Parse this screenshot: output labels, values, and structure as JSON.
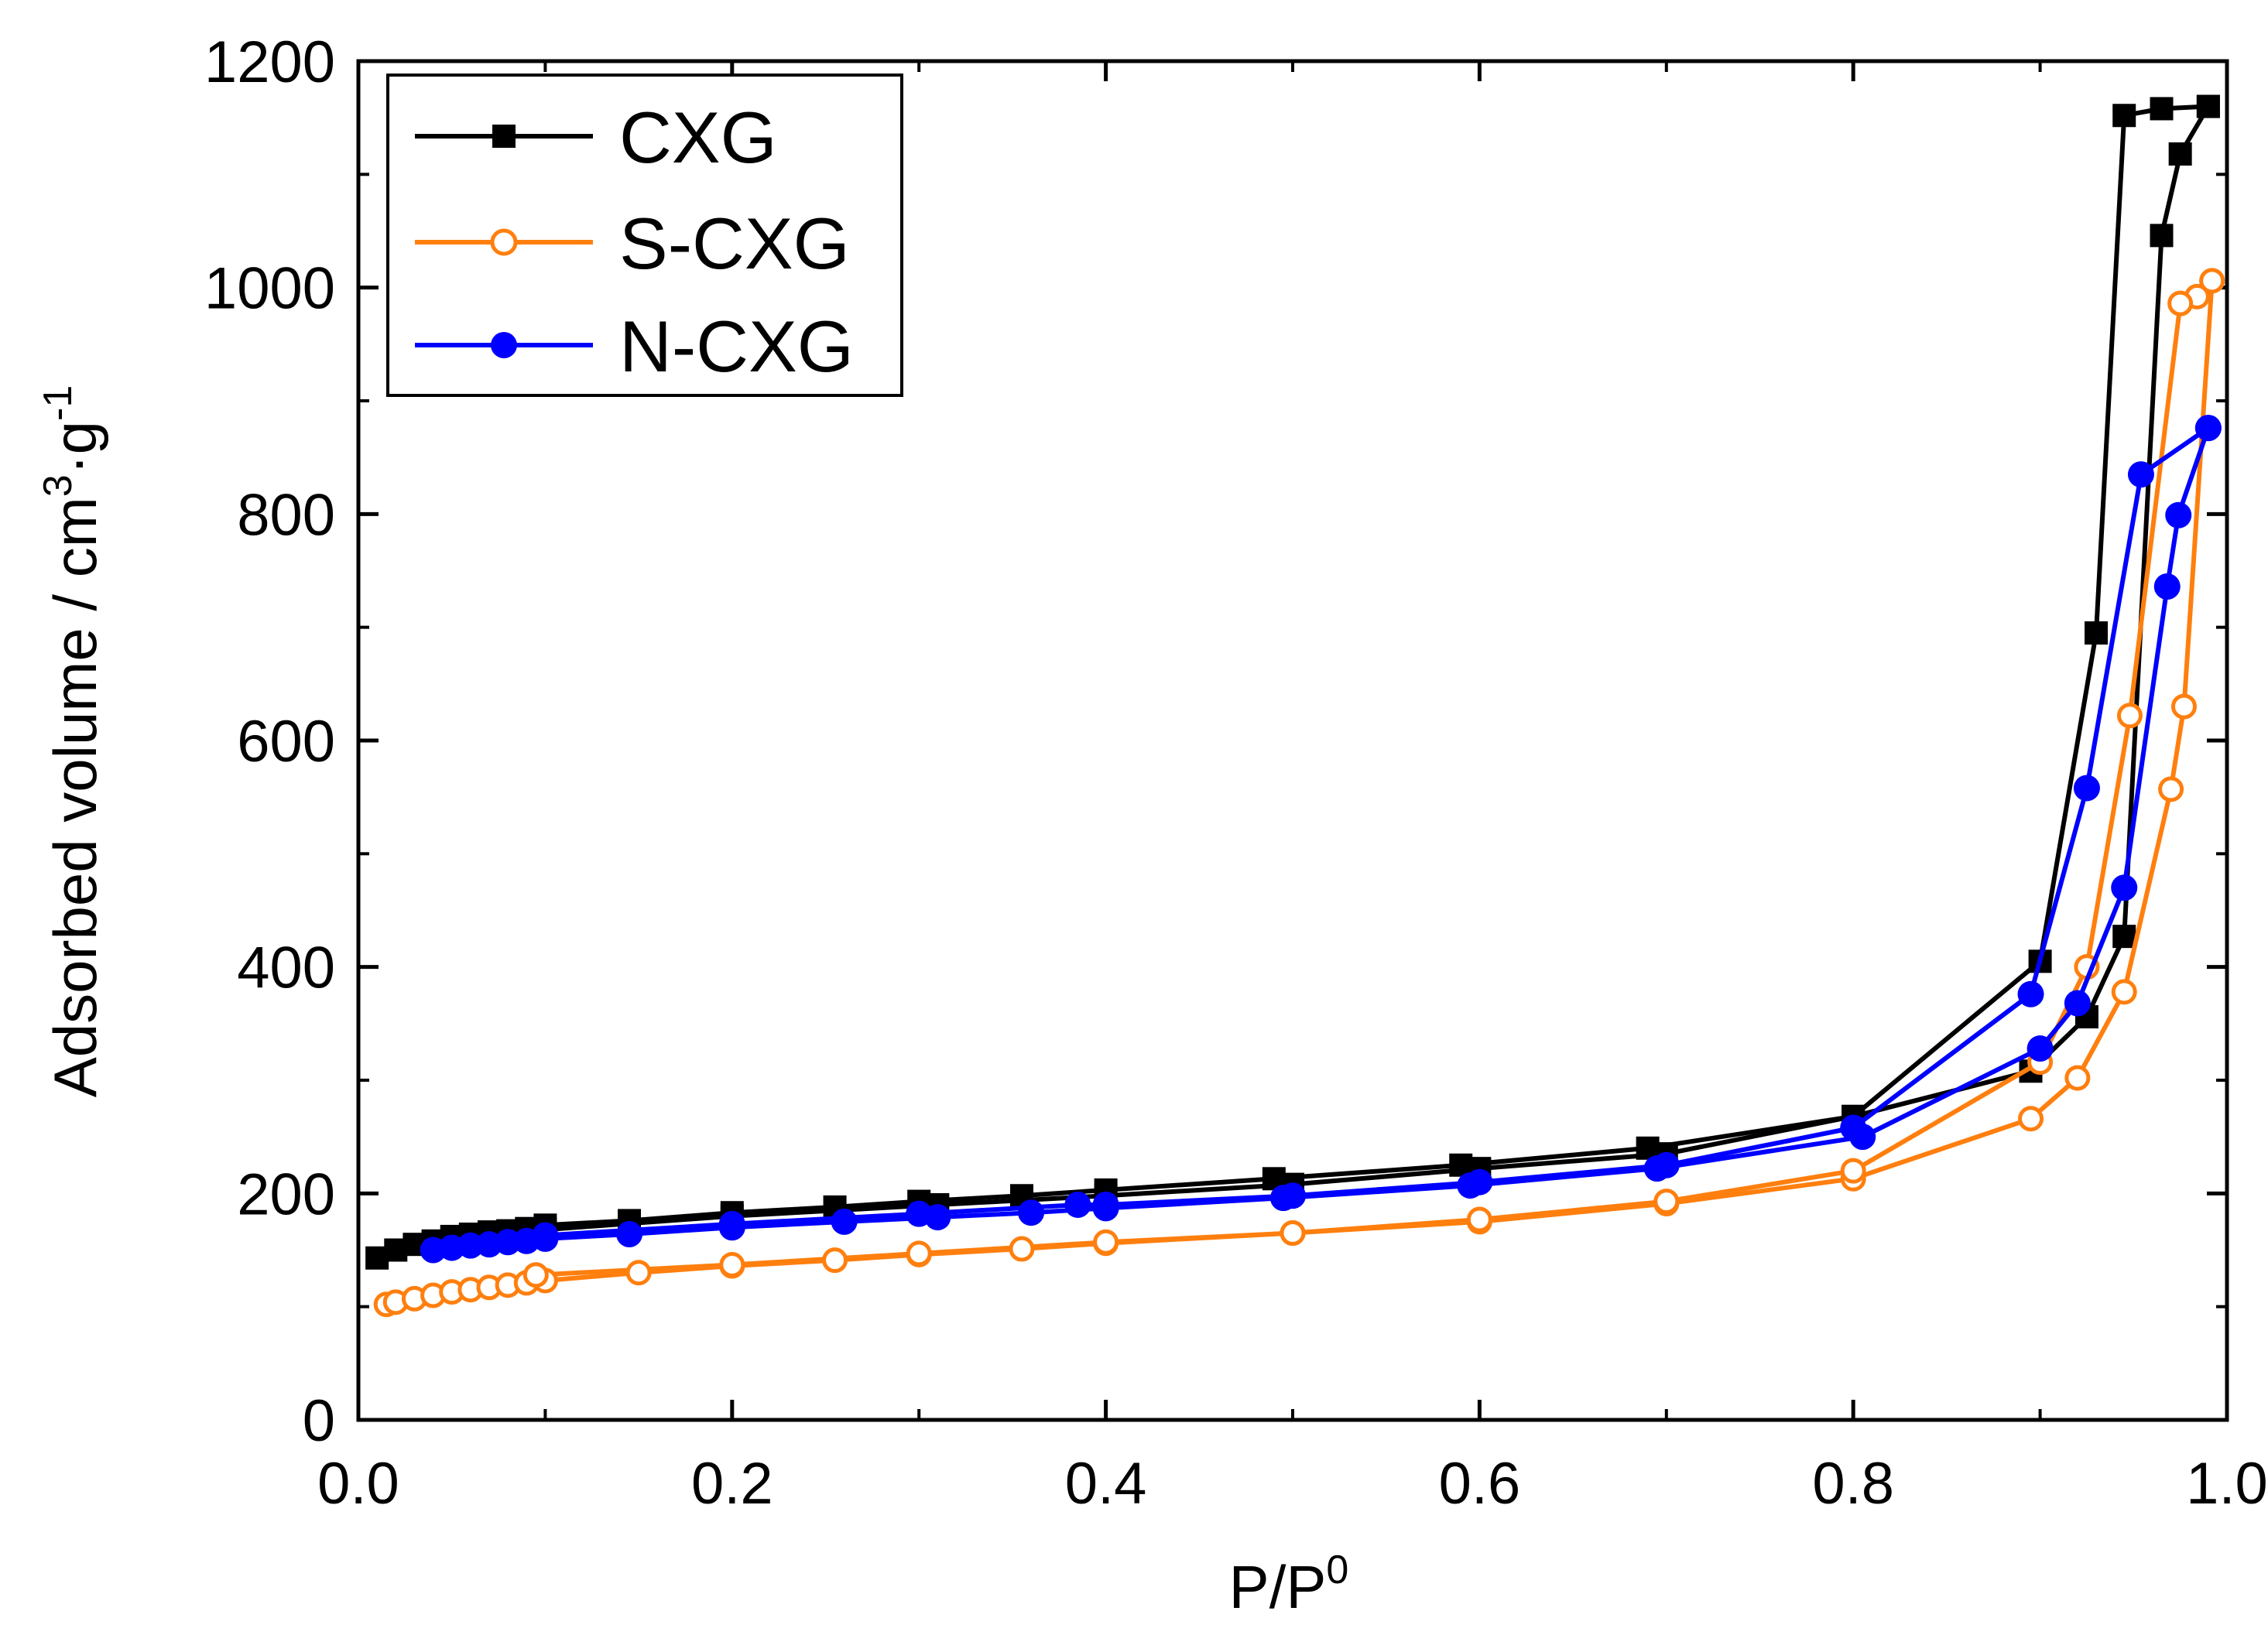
{
  "chart_data": {
    "type": "line",
    "title": "",
    "xlabel": "P/P",
    "xlabel_sup": "0",
    "ylabel_main": "Adsorbed volume / cm",
    "ylabel_sup1": "3",
    "ylabel_dot": "·g",
    "ylabel_sup2": "-1",
    "xlim": [
      0.0,
      1.0
    ],
    "ylim": [
      0,
      1200
    ],
    "xticks": [
      0.0,
      0.2,
      0.4,
      0.6,
      0.8,
      1.0
    ],
    "xtick_labels": [
      "0.0",
      "0.2",
      "0.4",
      "0.6",
      "0.8",
      "1.0"
    ],
    "yticks": [
      0,
      200,
      400,
      600,
      800,
      1000,
      1200
    ],
    "ytick_labels": [
      "0",
      "200",
      "400",
      "600",
      "800",
      "1000",
      "1200"
    ],
    "legend_position": "top-left",
    "series": [
      {
        "name": "CXG",
        "color": "#000000",
        "marker": "square-filled",
        "adsorption": {
          "x": [
            0.01,
            0.02,
            0.03,
            0.04,
            0.05,
            0.06,
            0.07,
            0.08,
            0.09,
            0.1,
            0.145,
            0.2,
            0.255,
            0.3,
            0.355,
            0.4,
            0.49,
            0.59,
            0.69,
            0.8,
            0.895,
            0.925,
            0.945,
            0.965,
            0.975,
            0.99
          ],
          "y": [
            143,
            150,
            155,
            158,
            162,
            164,
            166,
            167,
            169,
            172,
            176,
            183,
            188,
            193,
            198,
            203,
            213,
            225,
            240,
            268,
            308,
            356,
            427,
            1046,
            1118,
            1160
          ]
        },
        "desorption": {
          "x": [
            0.99,
            0.965,
            0.945,
            0.93,
            0.9,
            0.8,
            0.7,
            0.6,
            0.5,
            0.4,
            0.31,
            0.2,
            0.1
          ],
          "y": [
            1160,
            1158,
            1152,
            695,
            405,
            268,
            235,
            222,
            208,
            198,
            190,
            180,
            168
          ]
        }
      },
      {
        "name": "S-CXG",
        "color": "#ff7f0e",
        "marker": "circle-open",
        "adsorption": {
          "x": [
            0.015,
            0.02,
            0.03,
            0.04,
            0.05,
            0.06,
            0.07,
            0.08,
            0.09,
            0.1,
            0.15,
            0.2,
            0.255,
            0.3,
            0.355,
            0.4,
            0.5,
            0.6,
            0.7,
            0.8,
            0.895,
            0.92,
            0.945,
            0.97,
            0.977,
            0.992
          ],
          "y": [
            102,
            104,
            107,
            110,
            113,
            115,
            117,
            119,
            121,
            123,
            130,
            136,
            141,
            146,
            151,
            156,
            165,
            175,
            191,
            213,
            266,
            302,
            378,
            557,
            630,
            1006
          ]
        },
        "desorption": {
          "x": [
            0.992,
            0.984,
            0.975,
            0.948,
            0.925,
            0.9,
            0.8,
            0.7,
            0.6,
            0.5,
            0.4,
            0.3,
            0.2,
            0.095
          ],
          "y": [
            1006,
            992,
            986,
            622,
            400,
            316,
            220,
            193,
            177,
            165,
            157,
            147,
            137,
            128
          ]
        }
      },
      {
        "name": "N-CXG",
        "color": "#0000ff",
        "marker": "circle-filled",
        "adsorption": {
          "x": [
            0.04,
            0.05,
            0.06,
            0.07,
            0.08,
            0.09,
            0.1,
            0.145,
            0.2,
            0.26,
            0.31,
            0.36,
            0.4,
            0.495,
            0.595,
            0.695,
            0.805,
            0.9,
            0.92,
            0.945,
            0.968,
            0.974,
            0.99
          ],
          "y": [
            150,
            152,
            154,
            155,
            157,
            158,
            160,
            164,
            170,
            175,
            179,
            183,
            187,
            196,
            207,
            222,
            250,
            328,
            368,
            470,
            736,
            799,
            876
          ]
        },
        "desorption": {
          "x": [
            0.99,
            0.954,
            0.925,
            0.895,
            0.8,
            0.7,
            0.6,
            0.5,
            0.4,
            0.385,
            0.3,
            0.2,
            0.1
          ],
          "y": [
            876,
            835,
            558,
            376,
            258,
            225,
            210,
            198,
            190,
            190,
            182,
            173,
            163
          ]
        }
      }
    ]
  }
}
